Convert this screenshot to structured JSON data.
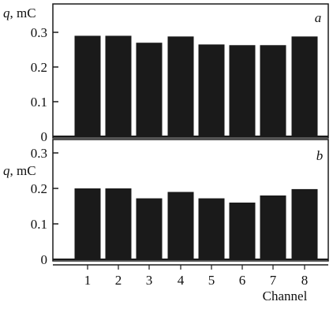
{
  "colors": {
    "bar": "#1a1a1a",
    "frame": "#1a1a1a",
    "background": "#ffffff"
  },
  "chart_data": [
    {
      "type": "bar",
      "panel_label": "a",
      "categories": [
        "1",
        "2",
        "3",
        "4",
        "5",
        "6",
        "7",
        "8"
      ],
      "values": [
        0.29,
        0.29,
        0.27,
        0.288,
        0.265,
        0.263,
        0.263,
        0.288
      ],
      "ylabel": "q, mC",
      "ylim": [
        0,
        0.32
      ],
      "yticks": [
        0,
        0.1,
        0.2,
        0.3
      ],
      "ytick_labels": [
        "0",
        "0.1",
        "0.2",
        "0.3"
      ],
      "grid": false,
      "legend": "none"
    },
    {
      "type": "bar",
      "panel_label": "b",
      "categories": [
        "1",
        "2",
        "3",
        "4",
        "5",
        "6",
        "7",
        "8"
      ],
      "values": [
        0.2,
        0.2,
        0.172,
        0.19,
        0.172,
        0.16,
        0.18,
        0.198
      ],
      "ylabel": "q, mC",
      "ylim": [
        0,
        0.32
      ],
      "yticks": [
        0,
        0.1,
        0.2,
        0.3
      ],
      "ytick_labels": [
        "0",
        "0.1",
        "0.2",
        "0.3"
      ],
      "xlabel": "Channel",
      "grid": false,
      "legend": "none"
    }
  ]
}
